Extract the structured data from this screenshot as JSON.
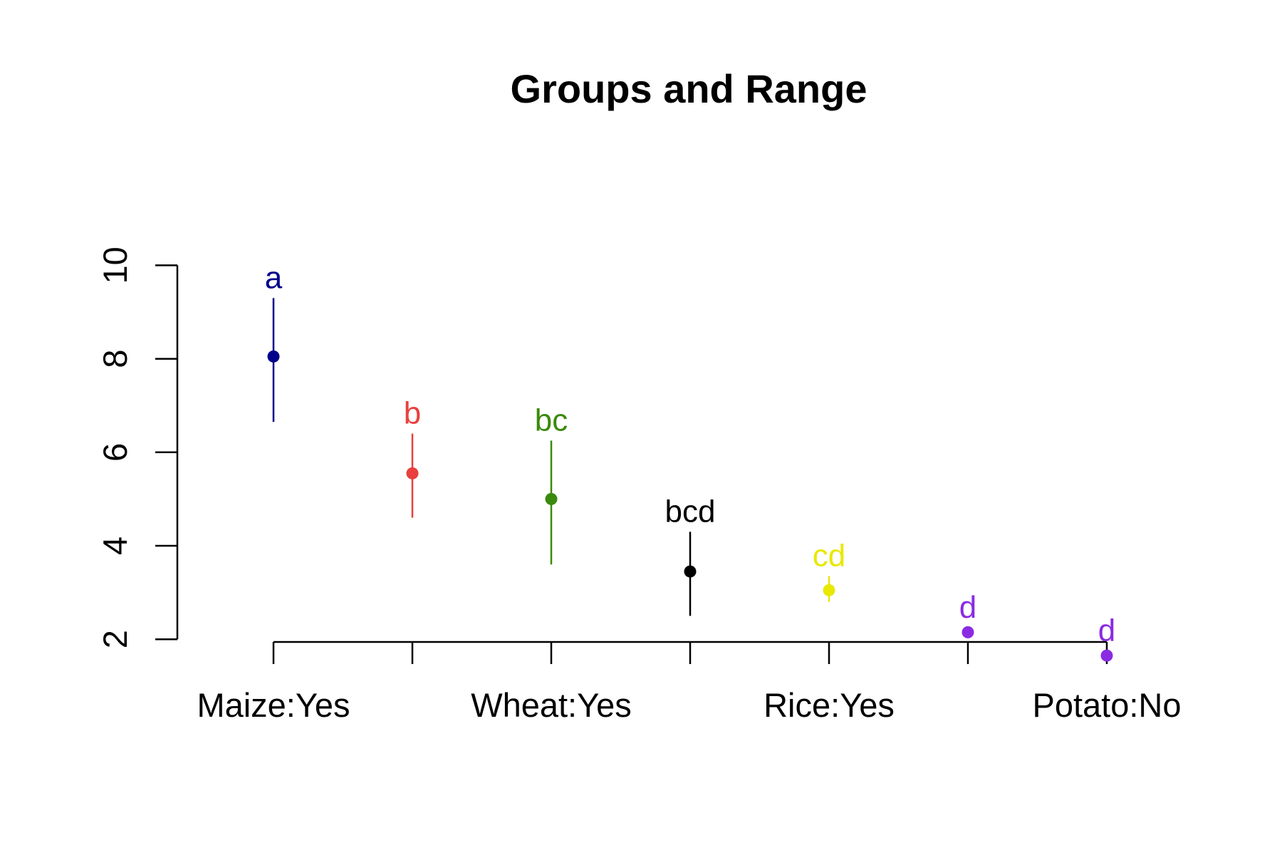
{
  "chart_data": {
    "type": "scatter",
    "title": "Groups and Range",
    "xlabel": "",
    "ylabel": "",
    "ylim": [
      1.2,
      10
    ],
    "yticks": [
      2,
      4,
      6,
      8,
      10
    ],
    "categories": [
      "Maize:Yes",
      "",
      "Wheat:Yes",
      "",
      "Rice:Yes",
      "",
      "Potato:No"
    ],
    "x_tick_labels_shown": [
      "Maize:Yes",
      "Wheat:Yes",
      "Rice:Yes",
      "Potato:No"
    ],
    "points": [
      {
        "category": "Maize:Yes",
        "mean": 8.05,
        "lower": 6.65,
        "upper": 9.3,
        "group": "a",
        "color": "#00008B"
      },
      {
        "category": "",
        "mean": 5.55,
        "lower": 4.6,
        "upper": 6.4,
        "group": "b",
        "color": "#E8403F"
      },
      {
        "category": "Wheat:Yes",
        "mean": 5.0,
        "lower": 3.6,
        "upper": 6.25,
        "group": "bc",
        "color": "#3A8A0C"
      },
      {
        "category": "",
        "mean": 3.45,
        "lower": 2.5,
        "upper": 4.3,
        "group": "bcd",
        "color": "#000000"
      },
      {
        "category": "Rice:Yes",
        "mean": 3.05,
        "lower": 2.8,
        "upper": 3.35,
        "group": "cd",
        "color": "#E8E800"
      },
      {
        "category": "",
        "mean": 2.15,
        "lower": 2.05,
        "upper": 2.25,
        "group": "d",
        "color": "#8A2BE2"
      },
      {
        "category": "Potato:No",
        "mean": 1.65,
        "lower": 1.55,
        "upper": 1.75,
        "group": "d",
        "color": "#8A2BE2"
      }
    ],
    "grid": false,
    "legend": "none"
  }
}
